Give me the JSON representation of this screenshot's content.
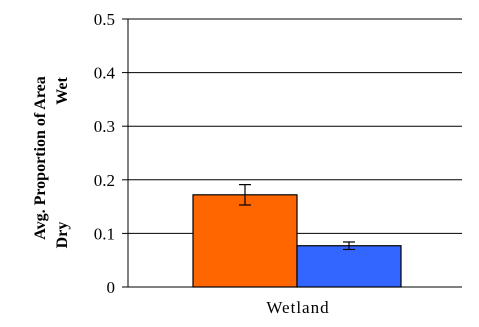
{
  "chart_data": {
    "type": "bar",
    "categories": [
      "Wetland"
    ],
    "series": [
      {
        "values": [
          0.172
        ],
        "error": [
          0.019
        ],
        "color": "#ff6600"
      },
      {
        "values": [
          0.077
        ],
        "error": [
          0.007
        ],
        "color": "#3366ff"
      }
    ],
    "ylabel_lines": [
      "Avg. Proportion of Area",
      "Wet",
      "Dry"
    ],
    "ylim": [
      0,
      0.5
    ],
    "yticks": [
      "0",
      "0.1",
      "0.2",
      "0.3",
      "0.4",
      "0.5"
    ],
    "grid": true,
    "legend": "none"
  }
}
